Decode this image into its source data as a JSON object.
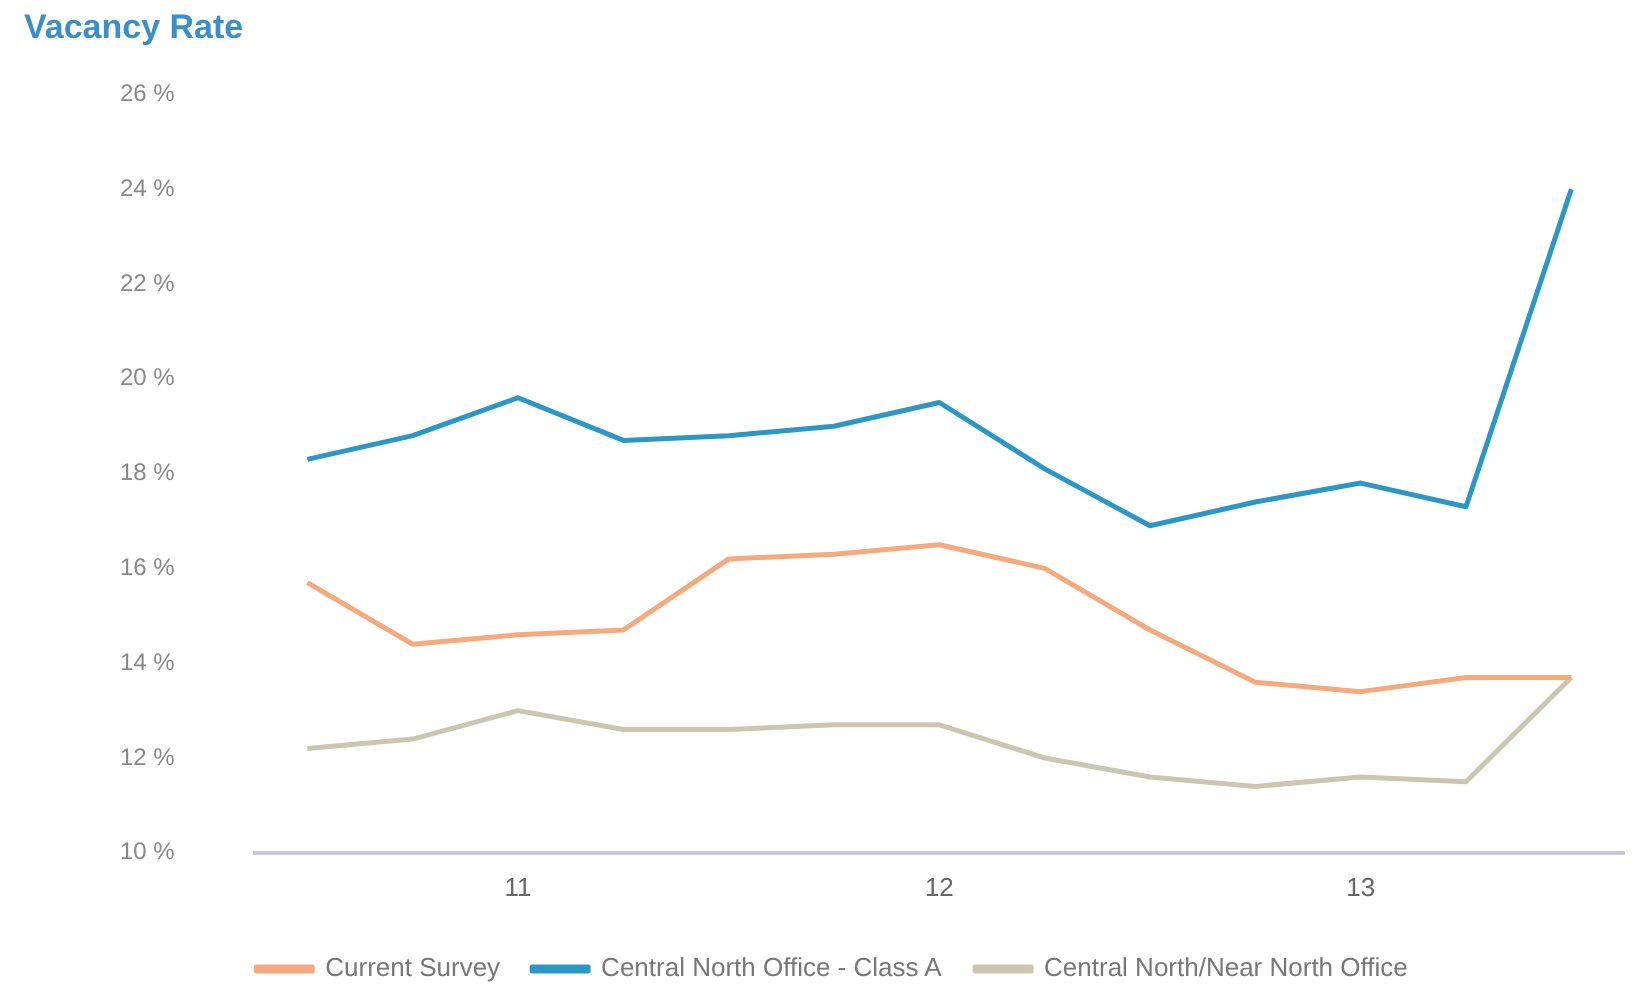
{
  "chart_data": {
    "type": "line",
    "title": "Vacancy Rate",
    "categories": [
      null,
      null,
      "11",
      null,
      null,
      null,
      "12",
      null,
      null,
      null,
      "13",
      null,
      null
    ],
    "series": [
      {
        "name": "Current Survey",
        "color": "#f5a97c",
        "values": [
          15.7,
          14.4,
          14.6,
          14.7,
          16.2,
          16.3,
          16.5,
          16.0,
          14.7,
          13.6,
          13.4,
          13.7,
          13.7
        ]
      },
      {
        "name": "Central North Office - Class A",
        "color": "#2b97c6",
        "values": [
          18.3,
          18.8,
          19.6,
          18.7,
          18.8,
          19.0,
          19.5,
          18.1,
          16.9,
          17.4,
          17.8,
          17.3,
          24.0
        ]
      },
      {
        "name": "Central North/Near North Office",
        "color": "#cbc6b0",
        "values": [
          12.2,
          12.4,
          13.0,
          12.6,
          12.6,
          12.7,
          12.7,
          12.0,
          11.6,
          11.4,
          11.6,
          11.5,
          13.7
        ]
      }
    ],
    "ylim": [
      10,
      26
    ],
    "yticks": [
      {
        "value": 10,
        "label": "10 %"
      },
      {
        "value": 12,
        "label": "12 %"
      },
      {
        "value": 14,
        "label": "14 %"
      },
      {
        "value": 16,
        "label": "16 %"
      },
      {
        "value": 18,
        "label": "18 %"
      },
      {
        "value": 20,
        "label": "20 %"
      },
      {
        "value": 22,
        "label": "22 %"
      },
      {
        "value": 24,
        "label": "24 %"
      },
      {
        "value": 26,
        "label": "26 %"
      }
    ],
    "grid": false,
    "legend": "bottom",
    "marker": "none",
    "line_style": "solid"
  }
}
